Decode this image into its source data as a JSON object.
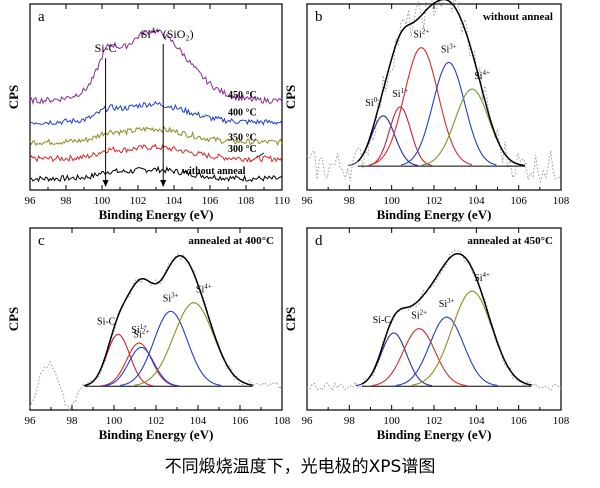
{
  "caption": "不同煅烧温度下，光电极的XPS谱图",
  "colors": {
    "black": "#000000",
    "red": "#d42a2a",
    "olive": "#8c8c20",
    "blue": "#1f3fc8",
    "purple": "#8a2a9a",
    "navy": "#2a2aa0",
    "crimson": "#c81e3c",
    "green": "#6e9a28",
    "gray_dots": "#9a9a9a"
  },
  "chart_data": [
    {
      "panel": "a",
      "type": "line",
      "xlabel": "Binding Energy (eV)",
      "ylabel": "CPS",
      "xlim": [
        96,
        110
      ],
      "x_ticks": [
        "96",
        "98",
        "100",
        "102",
        "104",
        "106",
        "108",
        "110"
      ],
      "annotations": [
        {
          "text": "Si-C",
          "x": 100.2
        },
        {
          "text": "Si",
          "sup": "4+",
          "suffix": " (SiO₂)",
          "x": 103.4
        }
      ],
      "series": [
        {
          "name": "without anneal",
          "color": "#000000",
          "offset": 0.0,
          "amplitude": 0.055
        },
        {
          "name": "300 °C",
          "color": "#d42a2a",
          "offset": 0.12,
          "amplitude": 0.07
        },
        {
          "name": "350 °C",
          "color": "#8c8c20",
          "offset": 0.22,
          "amplitude": 0.08
        },
        {
          "name": "400 °C",
          "color": "#1f3fc8",
          "offset": 0.34,
          "amplitude": 0.11
        },
        {
          "name": "450 °C",
          "color": "#8a2a9a",
          "offset": 0.47,
          "amplitude": 0.42
        }
      ]
    },
    {
      "panel": "b",
      "type": "line",
      "title": "without anneal",
      "xlabel": "Binding Energy (eV)",
      "ylabel": "CPS",
      "xlim": [
        96,
        108
      ],
      "x_ticks": [
        "96",
        "98",
        "100",
        "102",
        "104",
        "106",
        "108"
      ],
      "peaks": [
        {
          "label": "Si",
          "sup": "0",
          "center": 99.6,
          "height": 0.34,
          "width": 0.55,
          "color": "#2a2aa0"
        },
        {
          "label": "Si",
          "sup": "1+",
          "center": 100.4,
          "height": 0.4,
          "width": 0.5,
          "color": "#c81e3c"
        },
        {
          "label": "Si",
          "sup": "2+",
          "center": 101.4,
          "height": 0.8,
          "width": 0.8,
          "color": "#d42a2a"
        },
        {
          "label": "Si",
          "sup": "3+",
          "center": 102.7,
          "height": 0.7,
          "width": 0.75,
          "color": "#1f3fc8"
        },
        {
          "label": "Si",
          "sup": "4+",
          "center": 103.8,
          "height": 0.52,
          "width": 0.8,
          "color": "#6e9a28"
        }
      ]
    },
    {
      "panel": "c",
      "type": "line",
      "title": "annealed at 400°C",
      "xlabel": "Binding Energy (eV)",
      "ylabel": "CPS",
      "xlim": [
        96,
        108
      ],
      "x_ticks": [
        "96",
        "98",
        "100",
        "102",
        "104",
        "106",
        "108"
      ],
      "peaks": [
        {
          "label": "Si-C",
          "sup": "",
          "center": 100.2,
          "height": 0.36,
          "width": 0.55,
          "color": "#c81e3c"
        },
        {
          "label": "Si",
          "sup": "1+",
          "center": 101.2,
          "height": 0.3,
          "width": 0.6,
          "color": "#d42a2a"
        },
        {
          "label": "Si",
          "sup": "2+",
          "center": 101.3,
          "height": 0.27,
          "width": 0.6,
          "color": "#1f3fc8"
        },
        {
          "label": "Si",
          "sup": "3+",
          "center": 102.7,
          "height": 0.52,
          "width": 0.8,
          "color": "#1f3fc8"
        },
        {
          "label": "Si",
          "sup": "4+",
          "center": 103.8,
          "height": 0.58,
          "width": 0.95,
          "color": "#8c8c20"
        }
      ]
    },
    {
      "panel": "d",
      "type": "line",
      "title": "annealed at 450°C",
      "xlabel": "Binding Energy (eV)",
      "ylabel": "CPS",
      "xlim": [
        96,
        108
      ],
      "x_ticks": [
        "96",
        "98",
        "100",
        "102",
        "104",
        "106",
        "108"
      ],
      "peaks": [
        {
          "label": "Si-C",
          "sup": "",
          "center": 100.1,
          "height": 0.37,
          "width": 0.6,
          "color": "#2a2aa0"
        },
        {
          "label": "Si",
          "sup": "2+",
          "center": 101.3,
          "height": 0.4,
          "width": 0.75,
          "color": "#d42a2a"
        },
        {
          "label": "Si",
          "sup": "3+",
          "center": 102.6,
          "height": 0.48,
          "width": 0.8,
          "color": "#1f3fc8"
        },
        {
          "label": "Si",
          "sup": "4+",
          "center": 103.8,
          "height": 0.66,
          "width": 0.95,
          "color": "#8c8c20"
        }
      ]
    }
  ]
}
